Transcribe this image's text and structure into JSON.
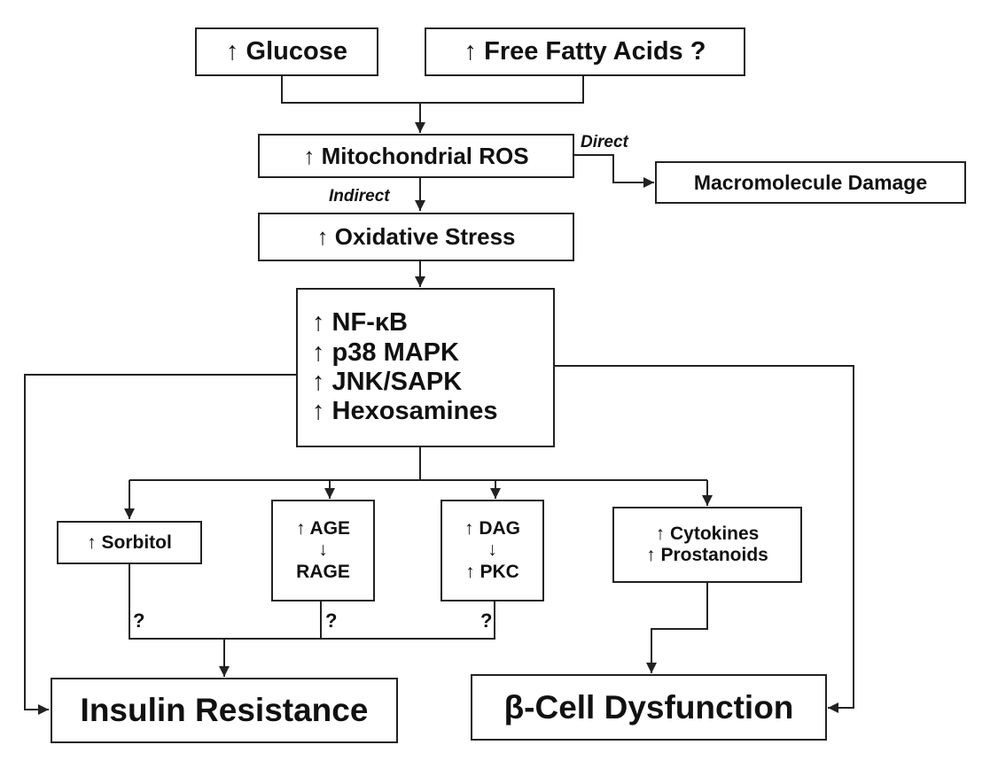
{
  "nodes": {
    "glucose": "↑ Glucose",
    "ffa": "↑ Free Fatty Acids ?",
    "ros": "↑ Mitochondrial ROS",
    "macro": "Macromolecule Damage",
    "oxstress": "↑ Oxidative Stress",
    "signaling": [
      "↑ NF-κB",
      "↑ p38 MAPK",
      "↑ JNK/SAPK",
      "↑ Hexosamines"
    ],
    "sorbitol": "↑ Sorbitol",
    "age": [
      "↑ AGE",
      "↓",
      "RAGE"
    ],
    "dag": [
      "↑ DAG",
      "↓",
      "↑ PKC"
    ],
    "cytokines": [
      "↑ Cytokines",
      "↑ Prostanoids"
    ],
    "insulin": "Insulin Resistance",
    "beta": "β-Cell Dysfunction"
  },
  "edge_labels": {
    "direct": "Direct",
    "indirect": "Indirect",
    "uncertain": "?"
  },
  "colors": {
    "line": "#222222",
    "text": "#111111",
    "background": "#ffffff"
  }
}
